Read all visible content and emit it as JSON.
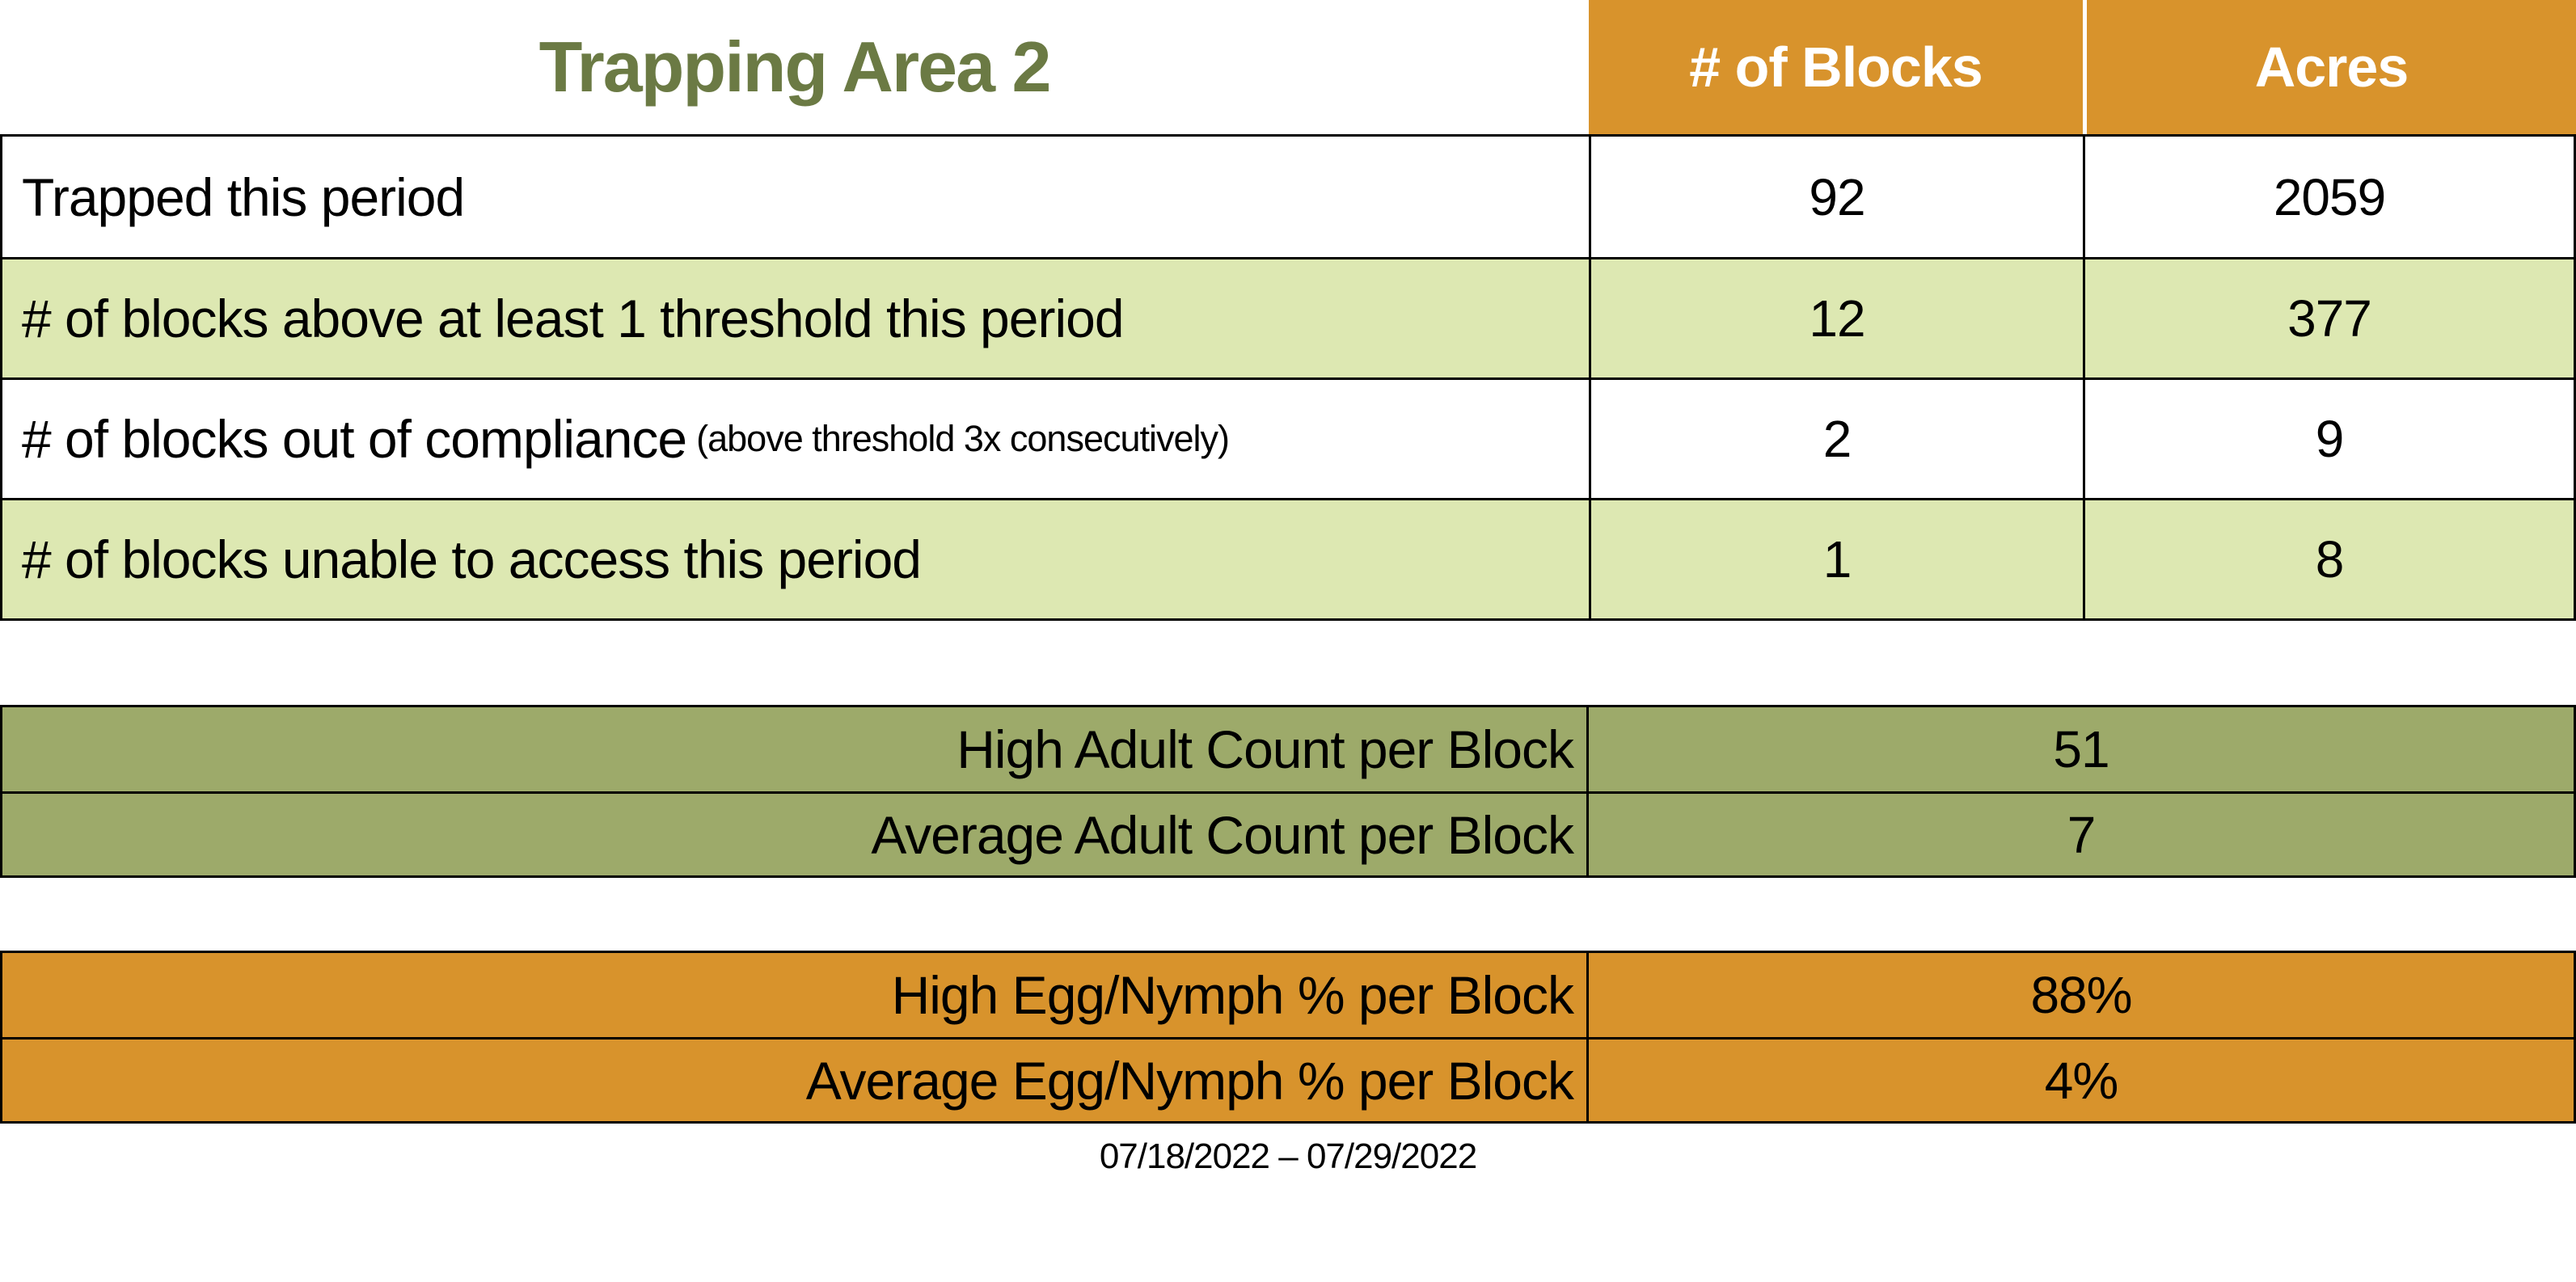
{
  "title": "Trapping Area 2",
  "date_range": "07/18/2022 – 07/29/2022",
  "colors": {
    "orange": "#D8932C",
    "light_green": "#DDE8B2",
    "olive_green": "#9DAA6A",
    "title_green": "#6B7A44",
    "header_text": "#FFFFFF",
    "body_text": "#000000",
    "border": "#000000"
  },
  "main_table": {
    "col_headers": {
      "blocks": "# of Blocks",
      "acres": "Acres"
    },
    "rows": [
      {
        "label": "Trapped this period",
        "note": "",
        "blocks": "92",
        "acres": "2059"
      },
      {
        "label": "# of blocks above at least 1 threshold this period",
        "note": "",
        "blocks": "12",
        "acres": "377"
      },
      {
        "label": "# of blocks out of compliance",
        "note": "(above threshold 3x consecutively)",
        "blocks": "2",
        "acres": "9"
      },
      {
        "label": "# of blocks unable to access this period",
        "note": "",
        "blocks": "1",
        "acres": "8"
      }
    ]
  },
  "adult_table": {
    "rows": [
      {
        "label": "High Adult Count per Block",
        "value": "51"
      },
      {
        "label": "Average Adult Count per Block",
        "value": "7"
      }
    ]
  },
  "egg_table": {
    "rows": [
      {
        "label": "High Egg/Nymph % per Block",
        "value": "88%"
      },
      {
        "label": "Average Egg/Nymph % per Block",
        "value": "4%"
      }
    ]
  },
  "chart_data": [
    {
      "type": "table",
      "title": "Trapping Area 2",
      "columns": [
        "",
        "# of Blocks",
        "Acres"
      ],
      "rows": [
        [
          "Trapped this period",
          92,
          2059
        ],
        [
          "# of blocks above at least 1 threshold this period",
          12,
          377
        ],
        [
          "# of blocks out of compliance (above threshold 3x consecutively)",
          2,
          9
        ],
        [
          "# of blocks unable to access this period",
          1,
          8
        ]
      ]
    },
    {
      "type": "table",
      "columns": [
        "Metric",
        "Value"
      ],
      "rows": [
        [
          "High Adult Count per Block",
          51
        ],
        [
          "Average Adult Count per Block",
          7
        ]
      ]
    },
    {
      "type": "table",
      "columns": [
        "Metric",
        "Value"
      ],
      "rows": [
        [
          "High Egg/Nymph % per Block",
          "88%"
        ],
        [
          "Average Egg/Nymph % per Block",
          "4%"
        ]
      ],
      "footnote": "07/18/2022 – 07/29/2022"
    }
  ]
}
